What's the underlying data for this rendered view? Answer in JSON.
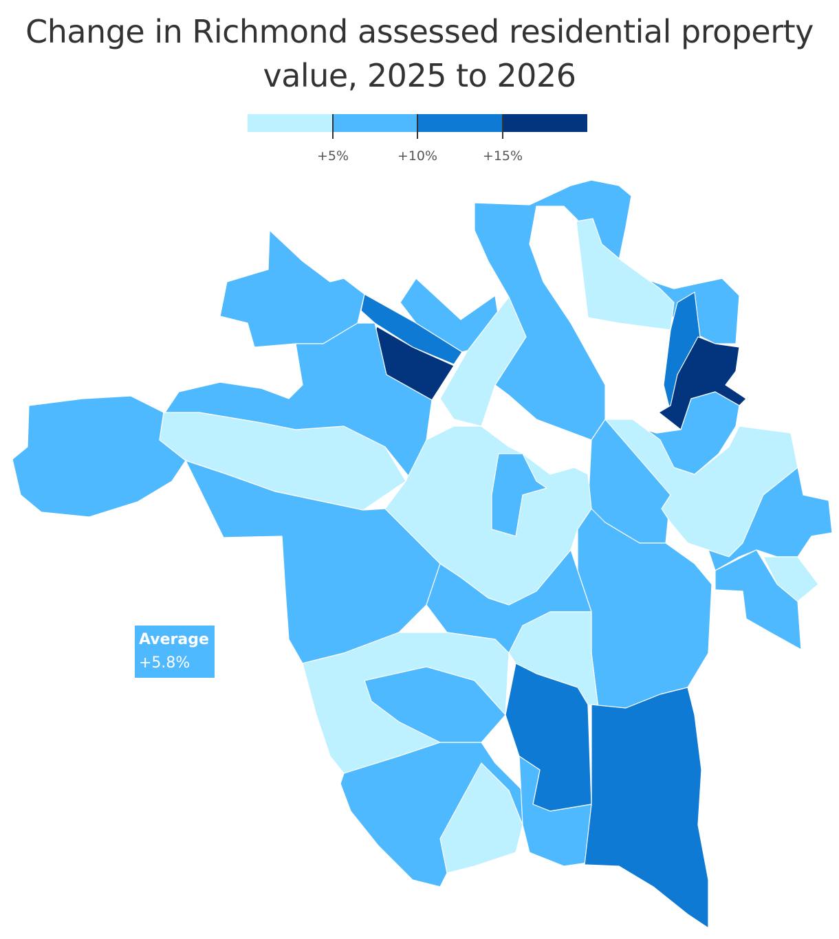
{
  "title_line1": "Change in Richmond assessed residential property",
  "title_line2": "value, 2025 to 2026",
  "legend": {
    "colors": [
      "#bdf1ff",
      "#4fb9ff",
      "#0f7ad4",
      "#03357f"
    ],
    "ticks": [
      "+5%",
      "+10%",
      "+15%"
    ]
  },
  "average": {
    "label": "Average",
    "value": "+5.8%"
  },
  "region_fill_classes": {
    "lt5": "#bdf1ff",
    "5to10": "#4fb9ff",
    "10to15": "#0f7ad4",
    "gt15": "#03357f"
  }
}
